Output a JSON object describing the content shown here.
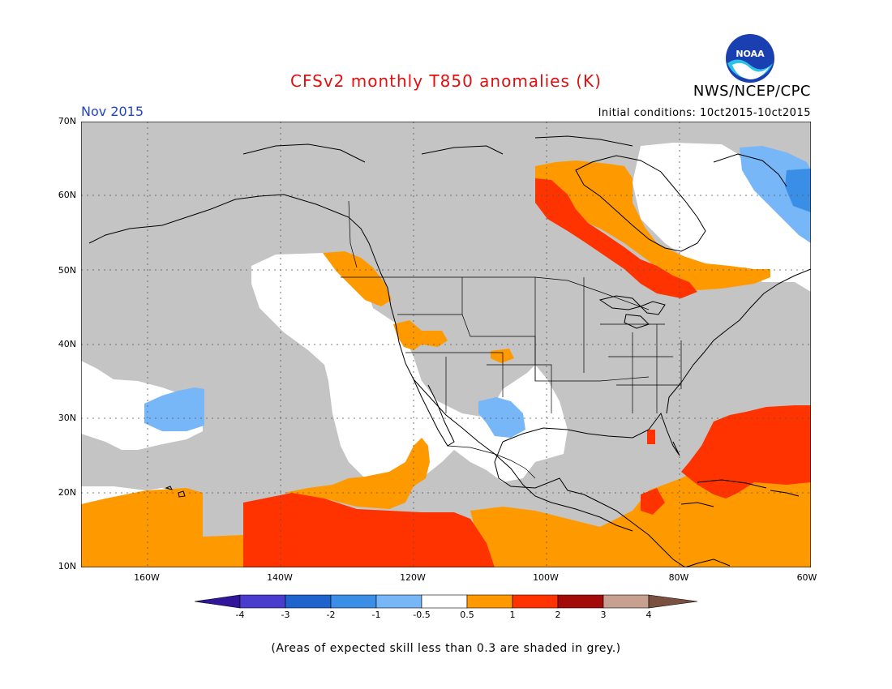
{
  "header": {
    "title": "CFSv2 monthly T850 anomalies (K)",
    "agency": "NWS/NCEP/CPC",
    "logo_text": "NOAA",
    "month": "Nov 2015",
    "initial_conditions": "Initial conditions: 10ct2015-10ct2015"
  },
  "map": {
    "lat_labels": [
      "70N",
      "60N",
      "50N",
      "40N",
      "30N",
      "20N",
      "10N"
    ],
    "lon_labels": [
      "160W",
      "140W",
      "120W",
      "100W",
      "80W",
      "60W"
    ],
    "colors": {
      "skill_grey": "#c4c4c4",
      "neutral": "#ffffff",
      "warm_05_1": "#ff9900",
      "warm_1_2": "#ff3300",
      "cool_m1_m05": "#77b7f7",
      "cool_m2_m1": "#3b8ee6"
    }
  },
  "colorbar": {
    "labels": [
      "-4",
      "-3",
      "-2",
      "-1",
      "-0.5",
      "0.5",
      "1",
      "2",
      "3",
      "4"
    ],
    "colors": [
      "#30169a",
      "#4a3ccc",
      "#1e64cc",
      "#3b8ee6",
      "#77b7f7",
      "#ffffff",
      "#ff9900",
      "#ff3300",
      "#a30a0a",
      "#c8a090",
      "#7a5040"
    ]
  },
  "footer": {
    "note": "(Areas of expected skill less than 0.3 are shaded in grey.)"
  }
}
